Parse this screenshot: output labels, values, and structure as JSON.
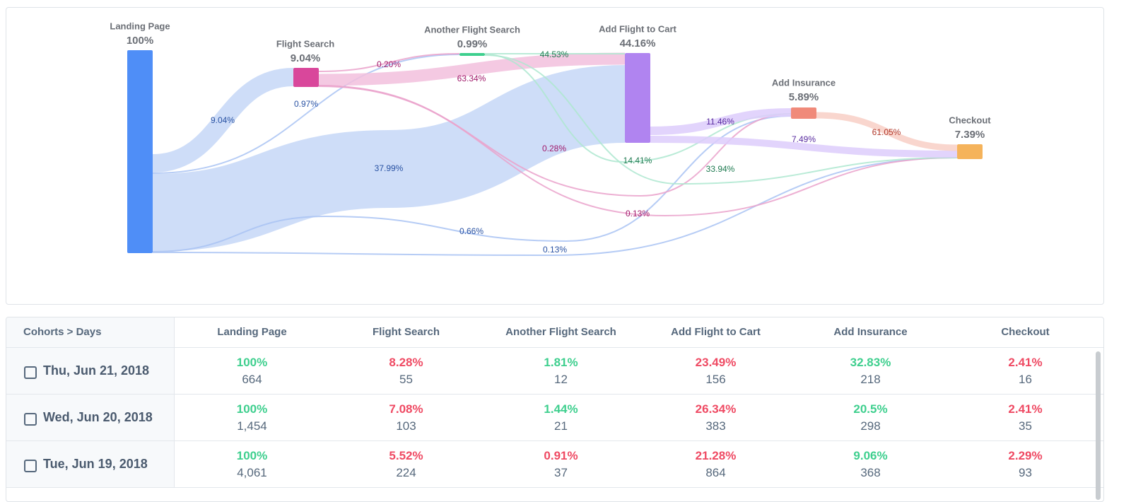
{
  "sankey": {
    "nodes": [
      {
        "label": "Landing Page",
        "value": "100%"
      },
      {
        "label": "Flight Search",
        "value": "9.04%"
      },
      {
        "label": "Another Flight Search",
        "value": "0.99%"
      },
      {
        "label": "Add Flight to Cart",
        "value": "44.16%"
      },
      {
        "label": "Add Insurance",
        "value": "5.89%"
      },
      {
        "label": "Checkout",
        "value": "7.39%"
      }
    ],
    "links": [
      {
        "label": "9.04%"
      },
      {
        "label": "0.97%"
      },
      {
        "label": "37.99%"
      },
      {
        "label": "0.66%"
      },
      {
        "label": "0.13%"
      },
      {
        "label": "0.20%"
      },
      {
        "label": "63.34%"
      },
      {
        "label": "0.28%"
      },
      {
        "label": "0.13%"
      },
      {
        "label": "44.53%"
      },
      {
        "label": "14.41%"
      },
      {
        "label": "33.94%"
      },
      {
        "label": "11.46%"
      },
      {
        "label": "7.49%"
      },
      {
        "label": "61.05%"
      }
    ]
  },
  "table": {
    "header": [
      "Cohorts > Days",
      "Landing Page",
      "Flight Search",
      "Another Flight Search",
      "Add Flight to Cart",
      "Add Insurance",
      "Checkout"
    ],
    "rows": [
      {
        "date": "Thu, Jun 21, 2018",
        "cells": [
          {
            "pct": "100%",
            "count": "664",
            "color": "#3ecf8e"
          },
          {
            "pct": "8.28%",
            "count": "55",
            "color": "#ef4a63"
          },
          {
            "pct": "1.81%",
            "count": "12",
            "color": "#3ecf8e"
          },
          {
            "pct": "23.49%",
            "count": "156",
            "color": "#ef4a63"
          },
          {
            "pct": "32.83%",
            "count": "218",
            "color": "#3ecf8e"
          },
          {
            "pct": "2.41%",
            "count": "16",
            "color": "#ef4a63"
          }
        ]
      },
      {
        "date": "Wed, Jun 20, 2018",
        "cells": [
          {
            "pct": "100%",
            "count": "1,454",
            "color": "#3ecf8e"
          },
          {
            "pct": "7.08%",
            "count": "103",
            "color": "#ef4a63"
          },
          {
            "pct": "1.44%",
            "count": "21",
            "color": "#3ecf8e"
          },
          {
            "pct": "26.34%",
            "count": "383",
            "color": "#ef4a63"
          },
          {
            "pct": "20.5%",
            "count": "298",
            "color": "#3ecf8e"
          },
          {
            "pct": "2.41%",
            "count": "35",
            "color": "#ef4a63"
          }
        ]
      },
      {
        "date": "Tue, Jun 19, 2018",
        "cells": [
          {
            "pct": "100%",
            "count": "4,061",
            "color": "#3ecf8e"
          },
          {
            "pct": "5.52%",
            "count": "224",
            "color": "#ef4a63"
          },
          {
            "pct": "0.91%",
            "count": "37",
            "color": "#ef4a63"
          },
          {
            "pct": "21.28%",
            "count": "864",
            "color": "#ef4a63"
          },
          {
            "pct": "9.06%",
            "count": "368",
            "color": "#3ecf8e"
          },
          {
            "pct": "2.29%",
            "count": "93",
            "color": "#ef4a63"
          }
        ]
      }
    ]
  }
}
